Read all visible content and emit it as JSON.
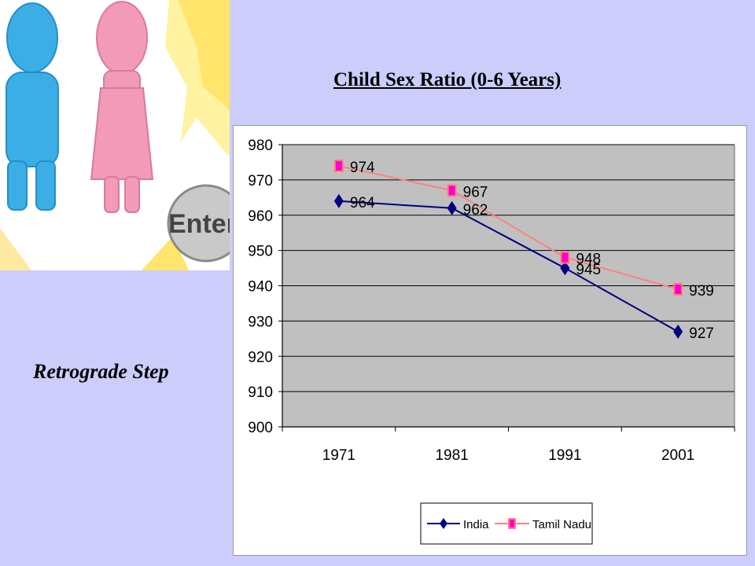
{
  "slide": {
    "side_caption": "Retrograde Step",
    "illustration_badge_text": "Enter"
  },
  "colors": {
    "background": "#cccdfb",
    "plot_area": "#c0c0c0",
    "india": "#000080",
    "tamil_nadu": "#ff8080",
    "tamil_nadu_marker": "#ff00cc"
  },
  "chart_data": {
    "type": "line",
    "title": "Child Sex Ratio (0-6 Years)",
    "xlabel": "",
    "ylabel": "",
    "categories": [
      "1971",
      "1981",
      "1991",
      "2001"
    ],
    "ylim": [
      900,
      980
    ],
    "yticks": [
      "900",
      "910",
      "920",
      "930",
      "940",
      "950",
      "960",
      "970",
      "980"
    ],
    "grid": true,
    "legend_position": "bottom",
    "series": [
      {
        "name": "India",
        "values": [
          964,
          962,
          945,
          927
        ],
        "labels": [
          "964",
          "962",
          "945",
          "927"
        ],
        "marker": "diamond"
      },
      {
        "name": "Tamil Nadu",
        "values": [
          974,
          967,
          948,
          939
        ],
        "labels": [
          "974",
          "967",
          "948",
          "939"
        ],
        "marker": "square"
      }
    ]
  }
}
